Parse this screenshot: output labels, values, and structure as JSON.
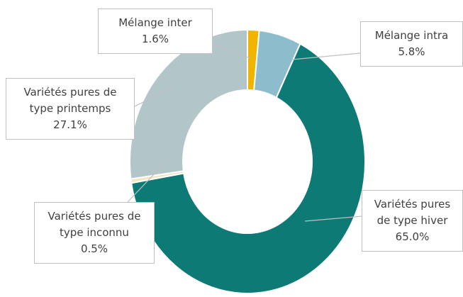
{
  "chart_data": {
    "type": "donut",
    "categories": [
      "Mélange inter",
      "Mélange intra",
      "Variétés pures de type hiver",
      "Variétés pures de type inconnu",
      "Variétés pures de type printemps"
    ],
    "values": [
      1.6,
      5.8,
      65.0,
      0.5,
      27.1
    ],
    "value_labels": [
      "1.6%",
      "5.8%",
      "65.0%",
      "0.5%",
      "27.1%"
    ],
    "colors": [
      "#f0b400",
      "#8dbdcc",
      "#0e7a75",
      "#f3e6c4",
      "#b2c5c9"
    ]
  }
}
